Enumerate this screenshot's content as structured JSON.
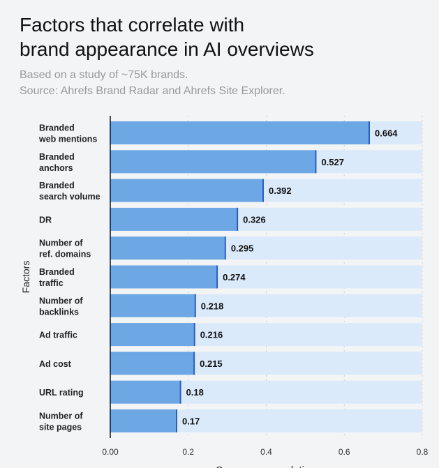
{
  "chart_data": {
    "type": "bar",
    "orientation": "horizontal",
    "title": [
      "Factors that correlate with",
      "brand appearance in AI overviews"
    ],
    "subtitle": [
      "Based on a study of ~75K brands.",
      "Source: Ahrefs Brand Radar and Ahrefs Site Explorer."
    ],
    "ylabel": "Factors",
    "xlabel": "Spearman correlation",
    "categories": [
      [
        "Branded",
        "web mentions"
      ],
      [
        "Branded",
        "anchors"
      ],
      [
        "Branded",
        "search volume"
      ],
      [
        "DR"
      ],
      [
        "Number of",
        "ref. domains"
      ],
      [
        "Branded",
        "traffic"
      ],
      [
        "Number of",
        "backlinks"
      ],
      [
        "Ad traffic"
      ],
      [
        "Ad cost"
      ],
      [
        "URL rating"
      ],
      [
        "Number of",
        "site pages"
      ]
    ],
    "values": [
      0.664,
      0.527,
      0.392,
      0.326,
      0.295,
      0.274,
      0.218,
      0.216,
      0.215,
      0.18,
      0.17
    ],
    "value_labels": [
      "0.664",
      "0.527",
      "0.392",
      "0.326",
      "0.295",
      "0.274",
      "0.218",
      "0.216",
      "0.215",
      "0.18",
      "0.17"
    ],
    "xticks": [
      "0.00",
      "0.2",
      "0.4",
      "0.6",
      "0.8"
    ],
    "xtick_values": [
      0,
      0.2,
      0.4,
      0.6,
      0.8
    ],
    "xlim": [
      0,
      0.8
    ],
    "grid": true,
    "colors": {
      "bar": "#6ea8e4",
      "track": "#dbeafb",
      "bar_end": "#1f5fd6"
    }
  }
}
